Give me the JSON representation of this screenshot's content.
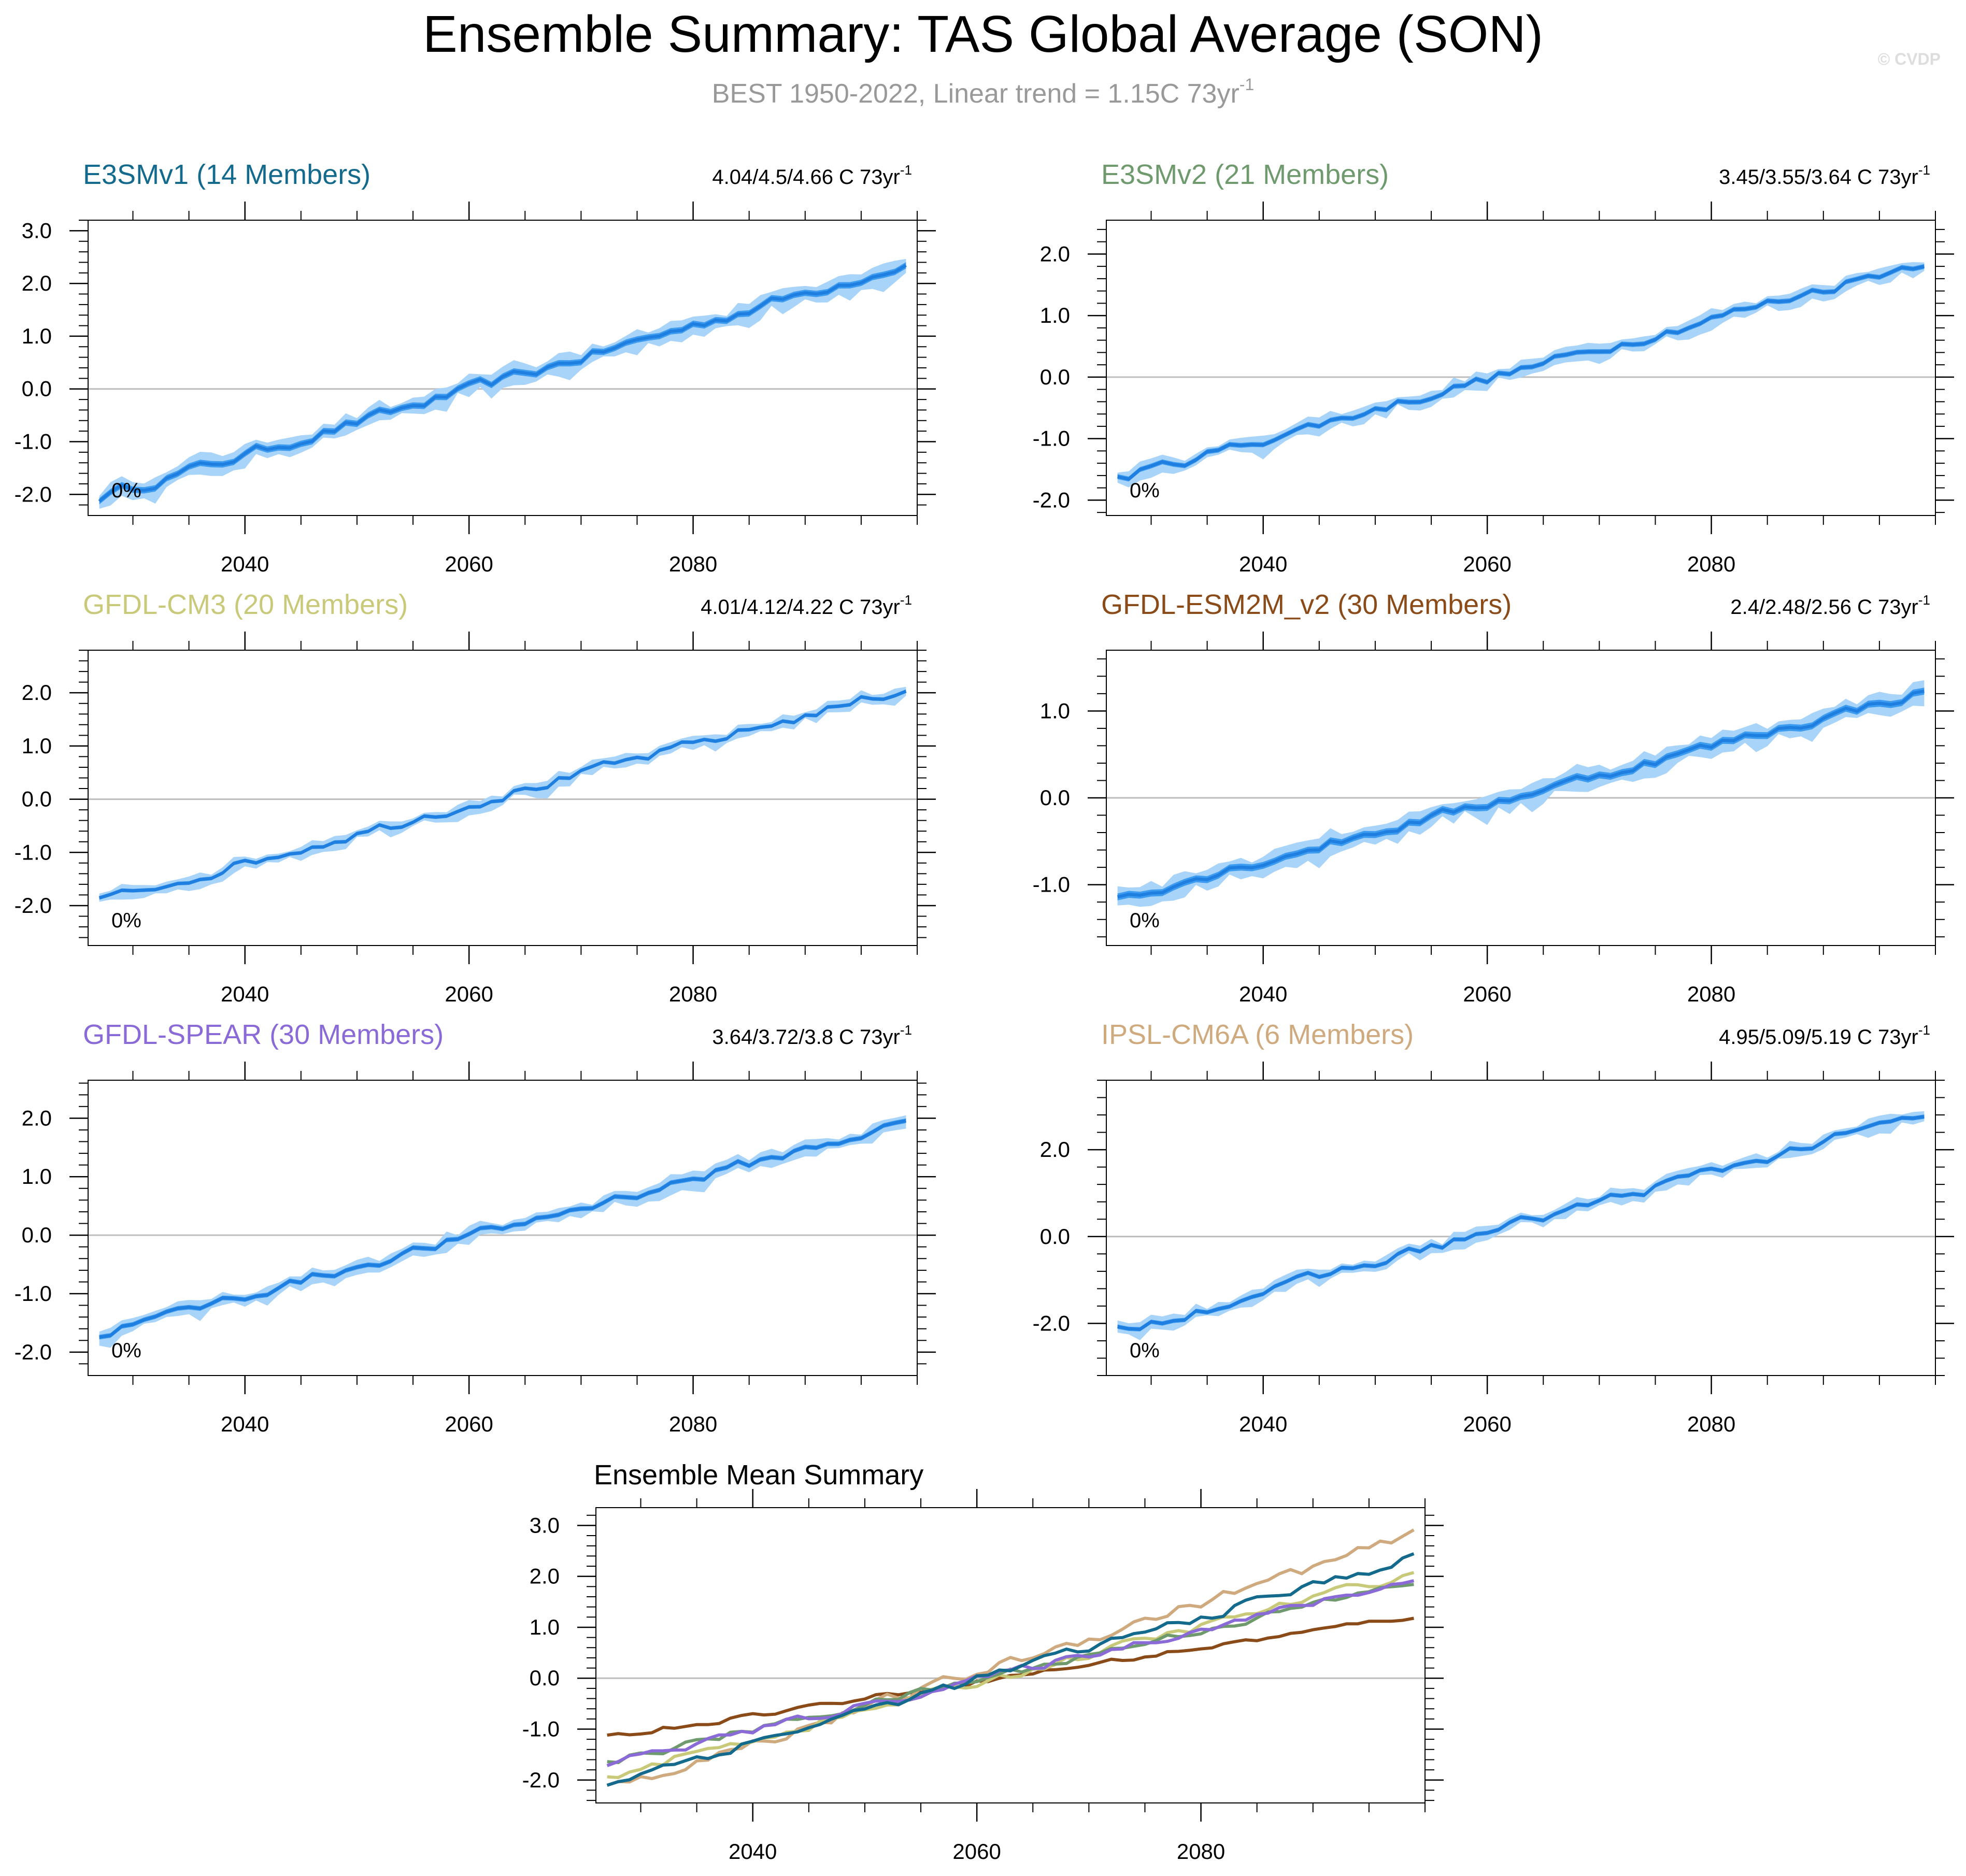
{
  "header": {
    "title": "Ensemble Summary: TAS Global Average (SON)",
    "subtitle": "BEST 1950-2022, Linear trend = 1.15C 73yr",
    "subtitle_exponent": "-1",
    "watermark": "© CVDP"
  },
  "colors": {
    "band_light": "#a9d4f9",
    "band_dark": "#3d9bf0",
    "line": "#1f7fe0",
    "subtitle": "#999999",
    "watermark": "#dddddd"
  },
  "chart_data": [
    {
      "type": "area",
      "title": "E3SMv1 (14 Members)",
      "title_color": "#146a8c",
      "trend": "4.04/4.5/4.66 C 73yr",
      "trend_exponent": "-1",
      "percent": "0%",
      "x_range": [
        2026,
        2100
      ],
      "ylim": [
        -2.4,
        3.2
      ],
      "yticks": [
        -2.0,
        -1.0,
        0.0,
        1.0,
        2.0,
        3.0
      ],
      "ytick_labels": [
        "-2.0",
        "-1.0",
        "0.0",
        "1.0",
        "2.0",
        "3.0"
      ],
      "xticks": [
        2040,
        2060,
        2080
      ],
      "xtick_labels": [
        "2040",
        "2060",
        "2080"
      ],
      "start_value": -2.05,
      "end_value": 2.37,
      "spread_outer": 0.15,
      "spread_inner": 0.06
    },
    {
      "type": "area",
      "title": "E3SMv2 (21 Members)",
      "title_color": "#6e9a6e",
      "trend": "3.45/3.55/3.64 C 73yr",
      "trend_exponent": "-1",
      "percent": "0%",
      "x_range": [
        2026,
        2100
      ],
      "ylim": [
        -2.25,
        2.55
      ],
      "yticks": [
        -2.0,
        -1.0,
        0.0,
        1.0,
        2.0
      ],
      "ytick_labels": [
        "-2.0",
        "-1.0",
        "0.0",
        "1.0",
        "2.0"
      ],
      "xticks": [
        2040,
        2060,
        2080
      ],
      "xtick_labels": [
        "2040",
        "2060",
        "2080"
      ],
      "start_value": -1.65,
      "end_value": 1.88,
      "spread_outer": 0.1,
      "spread_inner": 0.04
    },
    {
      "type": "area",
      "title": "GFDL-CM3 (20 Members)",
      "title_color": "#c9c97a",
      "trend": "4.01/4.12/4.22 C 73yr",
      "trend_exponent": "-1",
      "percent": "0%",
      "x_range": [
        2026,
        2100
      ],
      "ylim": [
        -2.75,
        2.8
      ],
      "yticks": [
        -2.0,
        -1.0,
        0.0,
        1.0,
        2.0
      ],
      "ytick_labels": [
        "-2.0",
        "-1.0",
        "0.0",
        "1.0",
        "2.0"
      ],
      "xticks": [
        2040,
        2060,
        2080
      ],
      "xtick_labels": [
        "2040",
        "2060",
        "2080"
      ],
      "start_value": -1.92,
      "end_value": 2.07,
      "spread_outer": 0.09,
      "spread_inner": 0.035
    },
    {
      "type": "area",
      "title": "GFDL-ESM2M_v2 (30 Members)",
      "title_color": "#8a4b19",
      "trend": "2.4/2.48/2.56 C 73yr",
      "trend_exponent": "-1",
      "percent": "0%",
      "x_range": [
        2026,
        2100
      ],
      "ylim": [
        -1.7,
        1.7
      ],
      "yticks": [
        -1.0,
        0.0,
        1.0
      ],
      "ytick_labels": [
        "-1.0",
        "0.0",
        "1.0"
      ],
      "xticks": [
        2040,
        2060,
        2080
      ],
      "xtick_labels": [
        "2040",
        "2060",
        "2080"
      ],
      "start_value": -1.15,
      "end_value": 1.22,
      "spread_outer": 0.1,
      "spread_inner": 0.04
    },
    {
      "type": "area",
      "title": "GFDL-SPEAR (30 Members)",
      "title_color": "#8a6ad6",
      "trend": "3.64/3.72/3.8 C 73yr",
      "trend_exponent": "-1",
      "percent": "0%",
      "x_range": [
        2026,
        2100
      ],
      "ylim": [
        -2.4,
        2.65
      ],
      "yticks": [
        -2.0,
        -1.0,
        0.0,
        1.0,
        2.0
      ],
      "ytick_labels": [
        "-2.0",
        "-1.0",
        "0.0",
        "1.0",
        "2.0"
      ],
      "xticks": [
        2040,
        2060,
        2080
      ],
      "xtick_labels": [
        "2040",
        "2060",
        "2080"
      ],
      "start_value": -1.68,
      "end_value": 1.92,
      "spread_outer": 0.1,
      "spread_inner": 0.04
    },
    {
      "type": "area",
      "title": "IPSL-CM6A (6 Members)",
      "title_color": "#cfaa7e",
      "trend": "4.95/5.09/5.19 C 73yr",
      "trend_exponent": "-1",
      "percent": "0%",
      "x_range": [
        2026,
        2100
      ],
      "ylim": [
        -3.2,
        3.6
      ],
      "yticks": [
        -2.0,
        0.0,
        2.0
      ],
      "ytick_labels": [
        "-2.0",
        "0.0",
        "2.0"
      ],
      "xticks": [
        2040,
        2060,
        2080
      ],
      "xtick_labels": [
        "2040",
        "2060",
        "2080"
      ],
      "start_value": -2.18,
      "end_value": 2.8,
      "spread_outer": 0.12,
      "spread_inner": 0.05
    },
    {
      "type": "line",
      "title": "Ensemble Mean Summary",
      "x_range": [
        2026,
        2100
      ],
      "ylim": [
        -2.45,
        3.35
      ],
      "yticks": [
        -2.0,
        -1.0,
        0.0,
        1.0,
        2.0,
        3.0
      ],
      "ytick_labels": [
        "-2.0",
        "-1.0",
        "0.0",
        "1.0",
        "2.0",
        "3.0"
      ],
      "xticks": [
        2040,
        2060,
        2080
      ],
      "xtick_labels": [
        "2040",
        "2060",
        "2080"
      ],
      "series": [
        {
          "color": "#8a4b19",
          "start_value": -1.15,
          "end_value": 1.22
        },
        {
          "color": "#cfaa7e",
          "start_value": -2.18,
          "end_value": 2.8
        },
        {
          "color": "#c9c97a",
          "start_value": -1.92,
          "end_value": 2.07
        },
        {
          "color": "#6e9a6e",
          "start_value": -1.65,
          "end_value": 1.88
        },
        {
          "color": "#8a6ad6",
          "start_value": -1.68,
          "end_value": 1.92
        },
        {
          "color": "#146a8c",
          "start_value": -2.05,
          "end_value": 2.37
        }
      ]
    }
  ]
}
